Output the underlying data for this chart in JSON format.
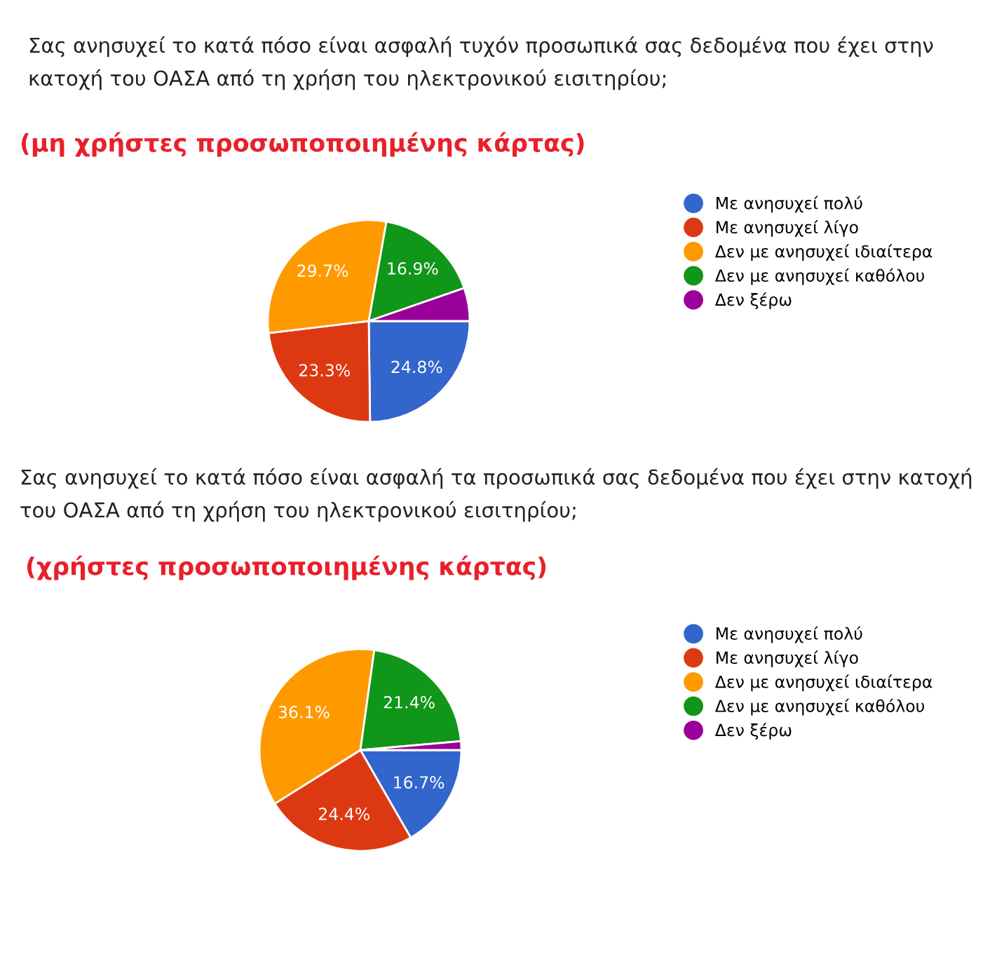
{
  "chart_data": [
    {
      "type": "pie",
      "title": "Σας ανησυχεί το κατά πόσο είναι ασφαλή τυχόν προσωπικά σας δεδομένα που έχει στην\nκατοχή του ΟΑΣΑ από τη χρήση του ηλεκτρονικού εισιτηρίου;",
      "subtitle": "(μη χρήστες προσωποποιημένης κάρτας)",
      "categories": [
        "Με ανησυχεί πολύ",
        "Με ανησυχεί λίγο",
        "Δεν με ανησυχεί ιδιαίτερα",
        "Δεν με ανησυχεί καθόλου",
        "Δεν ξέρω"
      ],
      "values": [
        24.8,
        23.3,
        29.7,
        16.9,
        5.3
      ],
      "value_labels": [
        "24.8%",
        "23.3%",
        "29.7%",
        "16.9%",
        null
      ],
      "colors": [
        "#3366cc",
        "#dc3912",
        "#ff9900",
        "#109618",
        "#990099"
      ],
      "legend": "right"
    },
    {
      "type": "pie",
      "title": "Σας ανησυχεί το κατά πόσο είναι ασφαλή τα προσωπικά σας δεδομένα που έχει στην κατοχή\nτου ΟΑΣΑ από τη χρήση του ηλεκτρονικού εισιτηρίου;",
      "subtitle": "(χρήστες προσωποποιημένης κάρτας)",
      "categories": [
        "Με ανησυχεί πολύ",
        "Με ανησυχεί λίγο",
        "Δεν με ανησυχεί ιδιαίτερα",
        "Δεν με ανησυχεί καθόλου",
        "Δεν ξέρω"
      ],
      "values": [
        16.7,
        24.4,
        36.1,
        21.4,
        1.4
      ],
      "value_labels": [
        "16.7%",
        "24.4%",
        "36.1%",
        "21.4%",
        null
      ],
      "colors": [
        "#3366cc",
        "#dc3912",
        "#ff9900",
        "#109618",
        "#990099"
      ],
      "legend": "right"
    }
  ]
}
